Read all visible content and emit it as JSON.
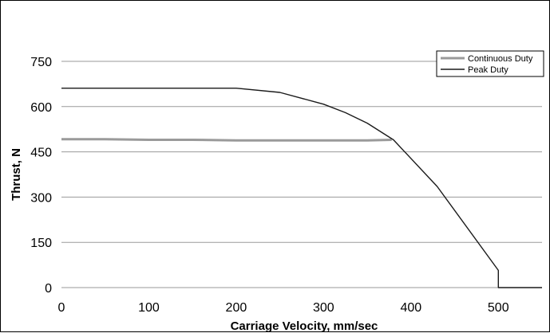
{
  "chart_data": {
    "type": "line",
    "xlabel": "Carriage Velocity, mm/sec",
    "ylabel": "Thrust, N",
    "xlim": [
      0,
      550
    ],
    "ylim": [
      0,
      750
    ],
    "x_ticks": [
      0,
      100,
      200,
      300,
      400,
      500
    ],
    "y_ticks": [
      0,
      150,
      300,
      450,
      600,
      750
    ],
    "grid": "horizontal",
    "legend_position": "top-right",
    "series": [
      {
        "name": "Continuous Duty",
        "color": "#9a9a9a",
        "points": [
          [
            0,
            492
          ],
          [
            50,
            492
          ],
          [
            100,
            490
          ],
          [
            150,
            490
          ],
          [
            200,
            488
          ],
          [
            250,
            488
          ],
          [
            300,
            488
          ],
          [
            350,
            488
          ],
          [
            378,
            490
          ]
        ]
      },
      {
        "name": "Peak Duty",
        "color": "#1a1a1a",
        "points": [
          [
            0,
            661
          ],
          [
            50,
            661
          ],
          [
            100,
            661
          ],
          [
            150,
            661
          ],
          [
            200,
            661
          ],
          [
            250,
            647
          ],
          [
            300,
            608
          ],
          [
            325,
            580
          ],
          [
            350,
            545
          ],
          [
            380,
            490
          ],
          [
            430,
            335
          ],
          [
            500,
            57
          ],
          [
            500,
            0
          ],
          [
            550,
            0
          ]
        ]
      }
    ]
  }
}
